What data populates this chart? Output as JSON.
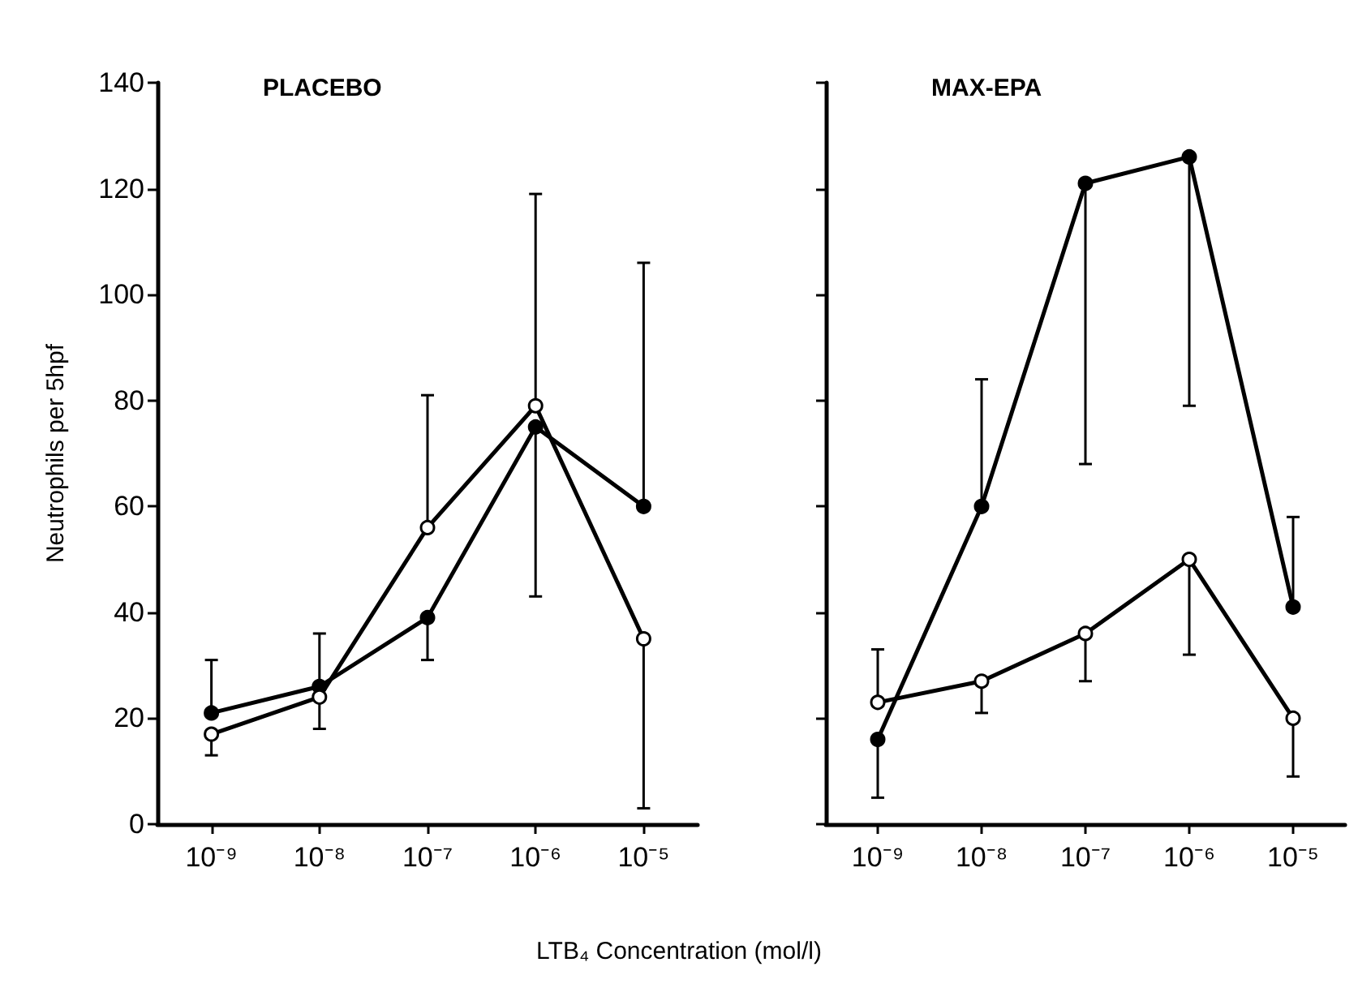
{
  "chart_data": [
    {
      "type": "line",
      "title": "PLACEBO",
      "ylabel": "Neutrophils per 5hpf",
      "xlabel": "LTB₄ Concentration (mol/l)",
      "categories": [
        "10⁻⁹",
        "10⁻⁸",
        "10⁻⁷",
        "10⁻⁶",
        "10⁻⁵"
      ],
      "ylim": [
        0,
        140
      ],
      "yticks": [
        0,
        20,
        40,
        60,
        80,
        100,
        120,
        140
      ],
      "marker": "circle",
      "grid": false,
      "series": [
        {
          "color": "#000000",
          "values": [
            21,
            26,
            39,
            75,
            60
          ],
          "errors": [
            [
              21,
              31
            ],
            [
              26,
              36
            ],
            [
              31,
              39
            ],
            [
              43,
              75
            ],
            [
              60,
              106
            ]
          ]
        },
        {
          "color": "#000000",
          "values": [
            17,
            24,
            56,
            79,
            35
          ],
          "errors": [
            [
              13,
              17
            ],
            [
              18,
              24
            ],
            [
              56,
              81
            ],
            [
              79,
              119
            ],
            [
              3,
              35
            ]
          ]
        }
      ]
    },
    {
      "type": "line",
      "title": "MAX-EPA",
      "categories": [
        "10⁻⁹",
        "10⁻⁸",
        "10⁻⁷",
        "10⁻⁶",
        "10⁻⁵"
      ],
      "ylim": [
        0,
        140
      ],
      "yticks": [
        0,
        20,
        40,
        60,
        80,
        100,
        120,
        140
      ],
      "tick_labels": "x",
      "marker": "circle",
      "grid": false,
      "series": [
        {
          "color": "#000000",
          "values": [
            16,
            60,
            121,
            126,
            41
          ],
          "errors": [
            [
              5,
              16
            ],
            [
              60,
              84
            ],
            [
              68,
              121
            ],
            [
              79,
              126
            ],
            [
              41,
              58
            ]
          ]
        },
        {
          "color": "#000000",
          "values": [
            23,
            27,
            36,
            50,
            20
          ],
          "errors": [
            [
              23,
              33
            ],
            [
              21,
              27
            ],
            [
              27,
              36
            ],
            [
              32,
              50
            ],
            [
              9,
              20
            ]
          ]
        }
      ]
    }
  ]
}
